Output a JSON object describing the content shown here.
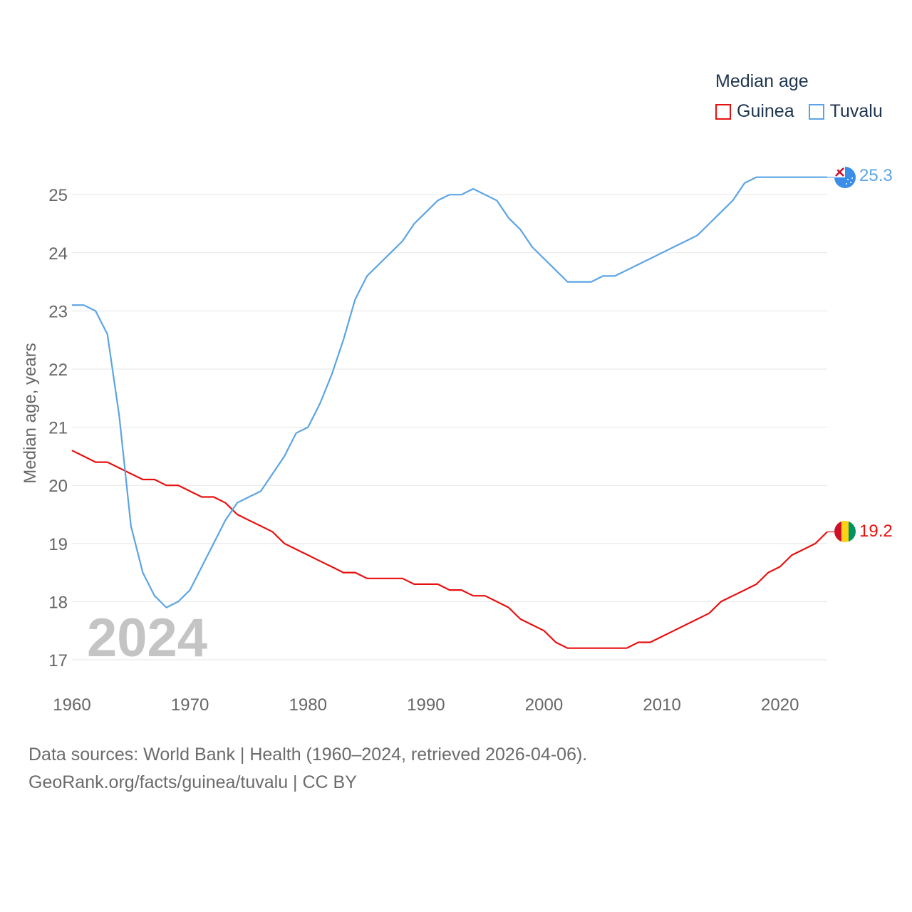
{
  "legend": {
    "title": "Median age",
    "items": [
      {
        "name": "Guinea",
        "color": "#e8100f"
      },
      {
        "name": "Tuvalu",
        "color": "#5ca4e4"
      }
    ]
  },
  "footer": {
    "line1": "Data sources: World Bank | Health (1960–2024, retrieved 2026-04-06).",
    "line2": "GeoRank.org/facts/guinea/tuvalu | CC BY"
  },
  "chart_data": {
    "type": "line",
    "title": "Median age",
    "xlabel": "",
    "ylabel": "Median age, years",
    "year_label": "2024",
    "xlim": [
      1960,
      2024
    ],
    "ylim": [
      17,
      25.3
    ],
    "x_ticks": [
      1960,
      1970,
      1980,
      1990,
      2000,
      2010,
      2020
    ],
    "y_ticks": [
      17,
      18,
      19,
      20,
      21,
      22,
      23,
      24,
      25
    ],
    "grid": true,
    "legend_position": "top-right",
    "x": [
      1960,
      1961,
      1962,
      1963,
      1964,
      1965,
      1966,
      1967,
      1968,
      1969,
      1970,
      1971,
      1972,
      1973,
      1974,
      1975,
      1976,
      1977,
      1978,
      1979,
      1980,
      1981,
      1982,
      1983,
      1984,
      1985,
      1986,
      1987,
      1988,
      1989,
      1990,
      1991,
      1992,
      1993,
      1994,
      1995,
      1996,
      1997,
      1998,
      1999,
      2000,
      2001,
      2002,
      2003,
      2004,
      2005,
      2006,
      2007,
      2008,
      2009,
      2010,
      2011,
      2012,
      2013,
      2014,
      2015,
      2016,
      2017,
      2018,
      2019,
      2020,
      2021,
      2022,
      2023,
      2024
    ],
    "series": [
      {
        "name": "Guinea",
        "color": "#e8100f",
        "end_label": "19.2",
        "values": [
          20.6,
          20.5,
          20.4,
          20.4,
          20.3,
          20.2,
          20.1,
          20.1,
          20.0,
          20.0,
          19.9,
          19.8,
          19.8,
          19.7,
          19.5,
          19.4,
          19.3,
          19.2,
          19.0,
          18.9,
          18.8,
          18.7,
          18.6,
          18.5,
          18.5,
          18.4,
          18.4,
          18.4,
          18.4,
          18.3,
          18.3,
          18.3,
          18.2,
          18.2,
          18.1,
          18.1,
          18.0,
          17.9,
          17.7,
          17.6,
          17.5,
          17.3,
          17.2,
          17.2,
          17.2,
          17.2,
          17.2,
          17.2,
          17.3,
          17.3,
          17.4,
          17.5,
          17.6,
          17.7,
          17.8,
          18.0,
          18.1,
          18.2,
          18.3,
          18.5,
          18.6,
          18.8,
          18.9,
          19.0,
          19.2
        ]
      },
      {
        "name": "Tuvalu",
        "color": "#5ca4e4",
        "end_label": "25.3",
        "values": [
          23.1,
          23.1,
          23.0,
          22.6,
          21.2,
          19.3,
          18.5,
          18.1,
          17.9,
          18.0,
          18.2,
          18.6,
          19.0,
          19.4,
          19.7,
          19.8,
          19.9,
          20.2,
          20.5,
          20.9,
          21.0,
          21.4,
          21.9,
          22.5,
          23.2,
          23.6,
          23.8,
          24.0,
          24.2,
          24.5,
          24.7,
          24.9,
          25.0,
          25.0,
          25.1,
          25.0,
          24.9,
          24.6,
          24.4,
          24.1,
          23.9,
          23.7,
          23.5,
          23.5,
          23.5,
          23.6,
          23.6,
          23.7,
          23.8,
          23.9,
          24.0,
          24.1,
          24.2,
          24.3,
          24.5,
          24.7,
          24.9,
          25.2,
          25.3,
          25.3,
          25.3,
          25.3,
          25.3,
          25.3,
          25.3
        ]
      }
    ]
  }
}
